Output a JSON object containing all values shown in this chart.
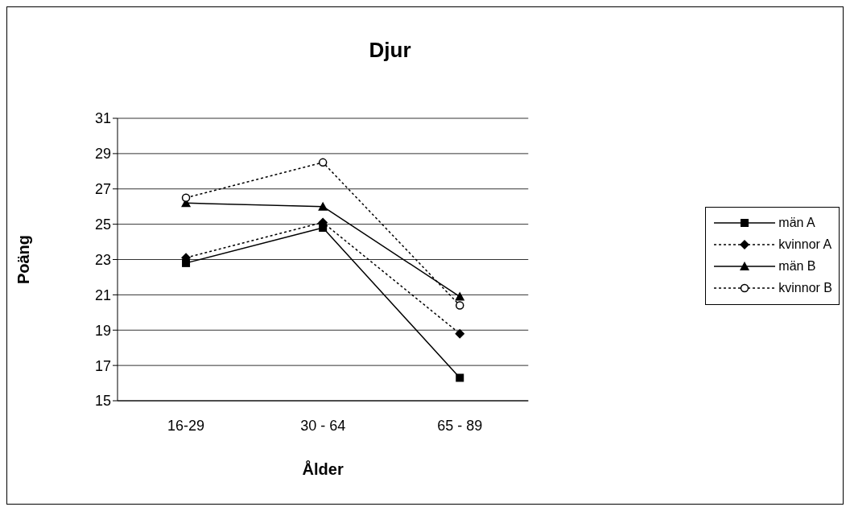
{
  "chart_data": {
    "type": "line",
    "title": "Djur",
    "xlabel": "Ålder",
    "ylabel": "Poäng",
    "categories": [
      "16-29",
      "30 - 64",
      "65 - 89"
    ],
    "series": [
      {
        "name": "män A",
        "color": "#000000",
        "marker": "square",
        "line_style": "solid",
        "values": [
          22.8,
          24.8,
          16.3
        ]
      },
      {
        "name": "kvinnor A",
        "color": "#000000",
        "marker": "diamond",
        "line_style": "dotted",
        "values": [
          23.1,
          25.1,
          18.8
        ]
      },
      {
        "name": "män B",
        "color": "#000000",
        "marker": "triangle",
        "line_style": "solid",
        "values": [
          26.2,
          26.0,
          20.9
        ]
      },
      {
        "name": "kvinnor B",
        "color": "#000000",
        "marker": "circle",
        "line_style": "dotted",
        "values": [
          26.5,
          28.5,
          20.4
        ]
      }
    ],
    "ylim": [
      15,
      31
    ],
    "yticks": [
      15,
      17,
      19,
      21,
      23,
      25,
      27,
      29,
      31
    ],
    "grid": "y",
    "legend": "right"
  }
}
